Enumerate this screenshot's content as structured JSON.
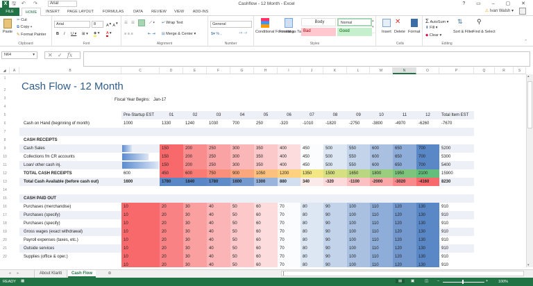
{
  "window": {
    "title": "Cashflow - 12 Month - Excel",
    "quick_font": "Arial",
    "user_name": "Ivan Walsh",
    "buttons": [
      "?",
      "restore-ribbon",
      "minimize",
      "maximize",
      "close"
    ]
  },
  "tabs": [
    {
      "label": "FILE"
    },
    {
      "label": "HOME"
    },
    {
      "label": "INSERT"
    },
    {
      "label": "PAGE LAYOUT"
    },
    {
      "label": "FORMULAS"
    },
    {
      "label": "DATA"
    },
    {
      "label": "REVIEW"
    },
    {
      "label": "VIEW"
    },
    {
      "label": "ADD-INS"
    }
  ],
  "ribbon": {
    "clipboard": {
      "label": "Clipboard",
      "paste": "Paste",
      "cut": "Cut",
      "copy": "Copy",
      "format_painter": "Format Painter"
    },
    "font": {
      "label": "Font",
      "family": "Arial",
      "size": "8"
    },
    "alignment": {
      "label": "Alignment",
      "wrap": "Wrap Text",
      "merge": "Merge & Center"
    },
    "number": {
      "label": "Number",
      "format": "General"
    },
    "styles": {
      "label": "Styles",
      "conditional": "Conditional Formatting",
      "format_table": "Format as Table",
      "body": "Body",
      "normal": "Normal",
      "bad": "Bad",
      "good": "Good"
    },
    "cells": {
      "label": "Cells",
      "insert": "Insert",
      "delete": "Delete",
      "format": "Format"
    },
    "editing": {
      "label": "Editing",
      "autosum": "AutoSum",
      "fill": "Fill",
      "clear": "Clear",
      "sort": "Sort & Filter",
      "find": "Find & Select"
    }
  },
  "formula_bar": {
    "name_box": "N64",
    "formula": ""
  },
  "columns": [
    "A",
    "B",
    "C",
    "D",
    "E",
    "F",
    "G",
    "H",
    "I",
    "J",
    "K",
    "L",
    "M",
    "N",
    "O",
    "P",
    "Q",
    "R",
    "S"
  ],
  "selected_column": "N",
  "sheet": {
    "title": "Cash Flow - 12 Month",
    "fiscal_label": "Fiscal Year Begins:",
    "fiscal_value": "Jan-17",
    "headers": [
      "Pre-Startup EST",
      "01",
      "02",
      "03",
      "04",
      "05",
      "06",
      "07",
      "08",
      "09",
      "10",
      "11",
      "12",
      "Total Item EST"
    ],
    "cash_on_hand": {
      "label": "Cash on Hand (beginning of month)",
      "values": [
        "1000",
        "1330",
        "1240",
        "1030",
        "700",
        "250",
        "-320",
        "-1010",
        "-1820",
        "-2750",
        "-3800",
        "-4970",
        "-6260",
        "-7670"
      ]
    },
    "receipts_section": "CASH RECEIPTS",
    "receipts": [
      {
        "label": "Cash Sales",
        "values": [
          "100",
          "150",
          "200",
          "250",
          "300",
          "350",
          "400",
          "450",
          "500",
          "550",
          "600",
          "650",
          "700",
          "5200"
        ]
      },
      {
        "label": "Collections fm CR accounts",
        "values": [
          "200",
          "150",
          "200",
          "250",
          "300",
          "350",
          "400",
          "450",
          "500",
          "550",
          "600",
          "650",
          "700",
          "5300"
        ]
      },
      {
        "label": "Loan/ other cash inj.",
        "values": [
          "300",
          "150",
          "200",
          "250",
          "300",
          "350",
          "400",
          "450",
          "500",
          "550",
          "600",
          "650",
          "700",
          "5400"
        ]
      }
    ],
    "total_receipts": {
      "label": "TOTAL CASH RECEIPTS",
      "values": [
        "600",
        "450",
        "600",
        "750",
        "900",
        "1050",
        "1200",
        "1350",
        "1500",
        "1650",
        "1800",
        "1950",
        "2100",
        "15900"
      ]
    },
    "total_available": {
      "label": "Total Cash Available (before cash out)",
      "values": [
        "1600",
        "1780",
        "1840",
        "1780",
        "1600",
        "1300",
        "880",
        "340",
        "-320",
        "-1100",
        "-2000",
        "-3020",
        "-4160",
        "8230"
      ]
    },
    "paid_section": "CASH PAID OUT",
    "paid": [
      {
        "label": "Purchases (merchandise)",
        "values": [
          "10",
          "20",
          "30",
          "40",
          "50",
          "60",
          "70",
          "80",
          "90",
          "100",
          "110",
          "120",
          "130",
          "910"
        ]
      },
      {
        "label": "Purchases (specify)",
        "values": [
          "10",
          "20",
          "30",
          "40",
          "50",
          "60",
          "70",
          "80",
          "90",
          "100",
          "110",
          "120",
          "130",
          "910"
        ]
      },
      {
        "label": "Purchases (specify)",
        "values": [
          "10",
          "20",
          "30",
          "40",
          "50",
          "60",
          "70",
          "80",
          "90",
          "100",
          "110",
          "120",
          "130",
          "910"
        ]
      },
      {
        "label": "Gross wages (exact withdrawal)",
        "values": [
          "10",
          "20",
          "30",
          "40",
          "50",
          "60",
          "70",
          "80",
          "90",
          "100",
          "110",
          "120",
          "130",
          "910"
        ]
      },
      {
        "label": "Payroll expenses (taxes, etc.)",
        "values": [
          "10",
          "20",
          "30",
          "40",
          "50",
          "60",
          "70",
          "80",
          "90",
          "100",
          "110",
          "120",
          "130",
          "910"
        ]
      },
      {
        "label": "Outside services",
        "values": [
          "10",
          "20",
          "30",
          "40",
          "50",
          "60",
          "70",
          "80",
          "90",
          "100",
          "110",
          "120",
          "130",
          "910"
        ]
      },
      {
        "label": "Supplies (office & oper.)",
        "values": [
          "10",
          "20",
          "30",
          "40",
          "50",
          "60",
          "70",
          "80",
          "90",
          "100",
          "110",
          "120",
          "130",
          "910"
        ]
      }
    ]
  },
  "sheet_tabs": [
    {
      "label": "About Klariti"
    },
    {
      "label": "Cash Flow",
      "active": true
    }
  ],
  "status": {
    "ready": "READY",
    "zoom": "100%"
  },
  "colors": {
    "excel_green": "#217346",
    "header_blue": "#2e5c8a",
    "band": "#edf1f7"
  }
}
